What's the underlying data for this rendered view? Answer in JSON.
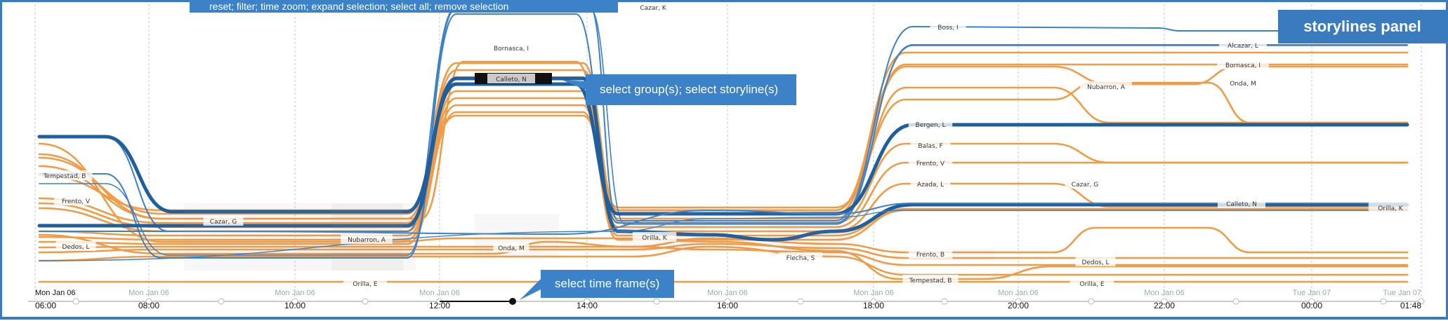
{
  "title": "storylines panel",
  "callouts": {
    "top": "reset; filter; time zoom; expand selection; select all; remove selection",
    "group": "select group(s); select storyline(s)",
    "time": "select time frame(s)"
  },
  "colors": {
    "accent": "#3a7bbf",
    "orange": "#f39a45",
    "blue": "#3b82c9",
    "dark_blue": "#1f5f9e",
    "grid": "#c7c7c7"
  },
  "time_axis": {
    "ticks": [
      {
        "date": "Mon Jan 06",
        "time": "06:00"
      },
      {
        "date": "Mon Jan 06",
        "time": "08:00"
      },
      {
        "date": "Mon Jan 06",
        "time": "10:00"
      },
      {
        "date": "Mon Jan 06",
        "time": "12:00"
      },
      {
        "date": "Mon Jan 06",
        "time": "14:00"
      },
      {
        "date": "Mon Jan 06",
        "time": "16:00"
      },
      {
        "date": "Mon Jan 06",
        "time": "18:00"
      },
      {
        "date": "Mon Jan 06",
        "time": "20:00"
      },
      {
        "date": "Mon Jan 06",
        "time": "22:00"
      },
      {
        "date": "Tue Jan 07",
        "time": "00:00"
      },
      {
        "date": "Tue Jan 07",
        "time": "01:48"
      }
    ]
  },
  "labels": [
    "Calleto, N",
    "Bornasca, I",
    "Tempestad, B",
    "Frento, V",
    "Cazar, G",
    "Dedos, L",
    "Nubarron, A",
    "Onda, M",
    "Orilla, K",
    "Flecha, S",
    "Orilla, E",
    "Boss, I",
    "Alcazar, L",
    "Bornasca, I",
    "Onda, M",
    "Nubarron, A",
    "Bergen, L",
    "Balas, F",
    "Frento, V",
    "Azada, L",
    "Cazar, G",
    "Calleto, N",
    "Orilla, K",
    "Frento, B",
    "Dedos, L",
    "Tempestad, B",
    "Orilla, E",
    "Cazar, K"
  ]
}
